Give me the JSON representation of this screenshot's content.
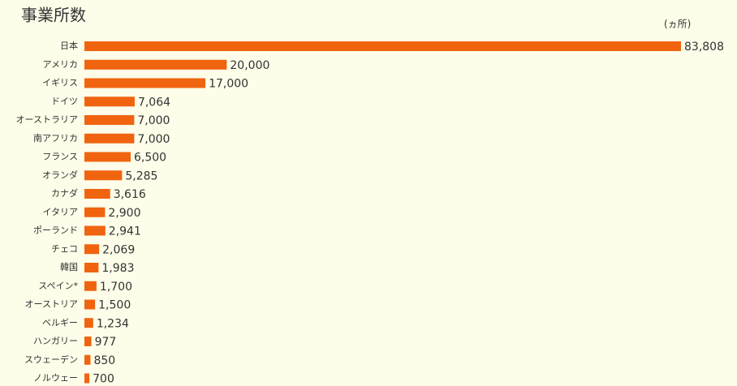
{
  "chart_data": {
    "type": "bar",
    "orientation": "horizontal",
    "title": "事業所数",
    "unit": "(ヵ所)",
    "categories": [
      "日本",
      "アメリカ",
      "イギリス",
      "ドイツ",
      "オーストラリア",
      "南アフリカ",
      "フランス",
      "オランダ",
      "カナダ",
      "イタリア",
      "ポーランド",
      "チェコ",
      "韓国",
      "スペイン*",
      "オーストリア",
      "ベルギー",
      "ハンガリー",
      "スウェーデン",
      "ノルウェー"
    ],
    "values": [
      83808,
      20000,
      17000,
      7064,
      7000,
      7000,
      6500,
      5285,
      3616,
      2900,
      2941,
      2069,
      1983,
      1700,
      1500,
      1234,
      977,
      850,
      700
    ],
    "value_labels": [
      "83,808",
      "20,000",
      "17,000",
      "7,064",
      "7,000",
      "7,000",
      "6,500",
      "5,285",
      "3,616",
      "2,900",
      "2,941",
      "2,069",
      "1,983",
      "1,700",
      "1,500",
      "1,234",
      "977",
      "850",
      "700"
    ],
    "color": "#f0640f"
  }
}
